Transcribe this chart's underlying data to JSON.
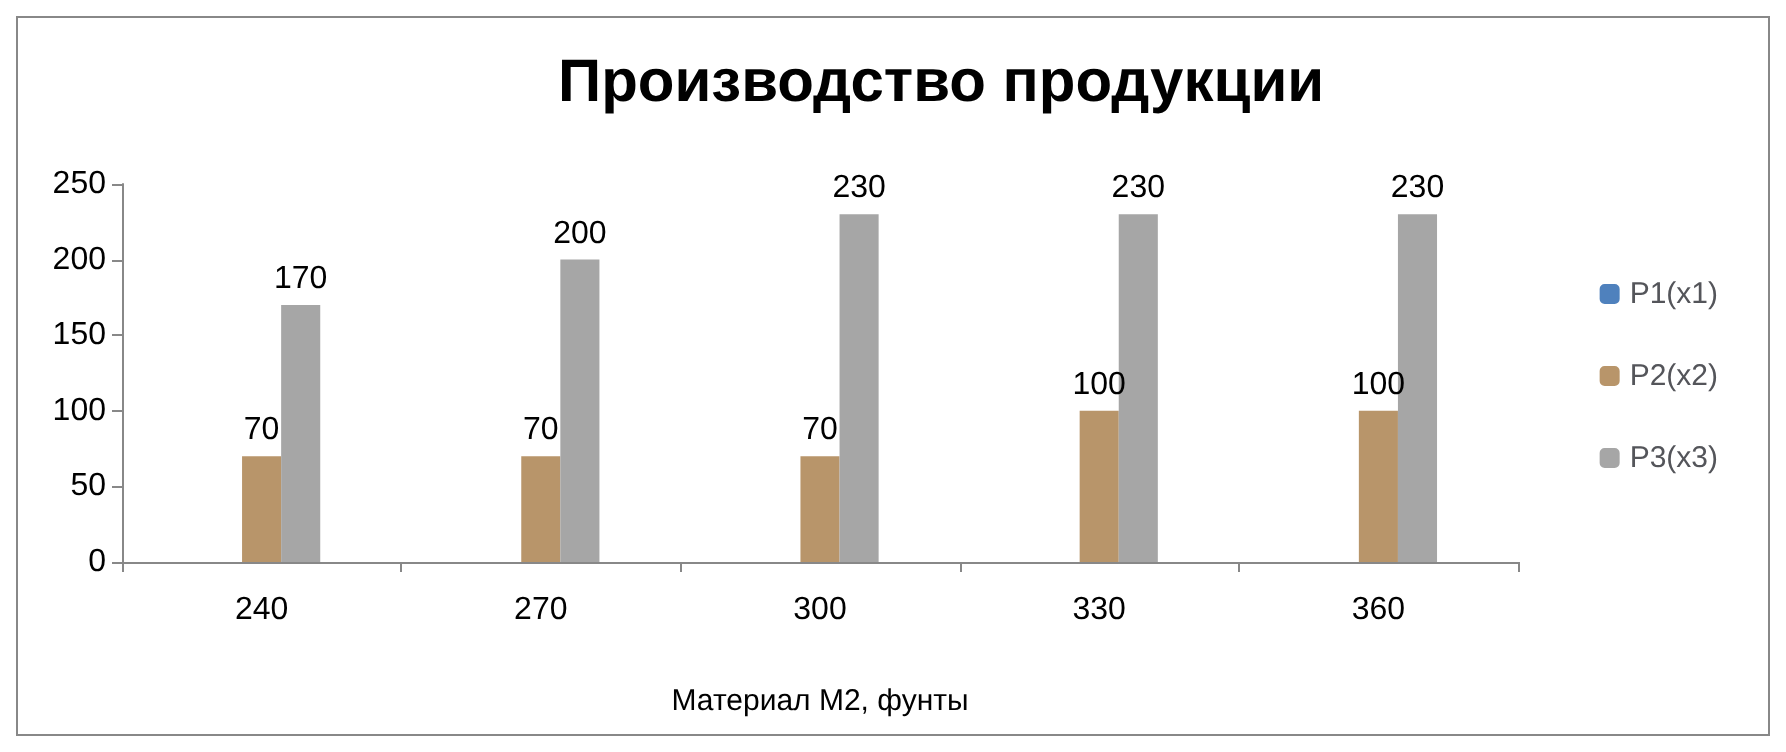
{
  "chart_data": {
    "type": "bar",
    "title": "Производство продукции",
    "xlabel": "Материал М2, фунты",
    "categories": [
      "240",
      "270",
      "300",
      "330",
      "360"
    ],
    "series": [
      {
        "name": "P1(x1)",
        "color": "#4f81bd",
        "values": [
          0,
          0,
          0,
          0,
          0
        ],
        "value_labels": [
          null,
          null,
          null,
          null,
          null
        ]
      },
      {
        "name": "P2(x2)",
        "color": "#b8956a",
        "values": [
          70,
          70,
          70,
          100,
          100
        ],
        "value_labels": [
          "70",
          "70",
          "70",
          "100",
          "100"
        ]
      },
      {
        "name": "P3(x3)",
        "color": "#a6a6a6",
        "values": [
          170,
          200,
          230,
          230,
          230
        ],
        "value_labels": [
          "170",
          "200",
          "230",
          "230",
          "230"
        ]
      }
    ],
    "ylim": [
      0,
      250
    ],
    "yticks": [
      0,
      50,
      100,
      150,
      200,
      250
    ],
    "grid": false,
    "legend": "right"
  }
}
